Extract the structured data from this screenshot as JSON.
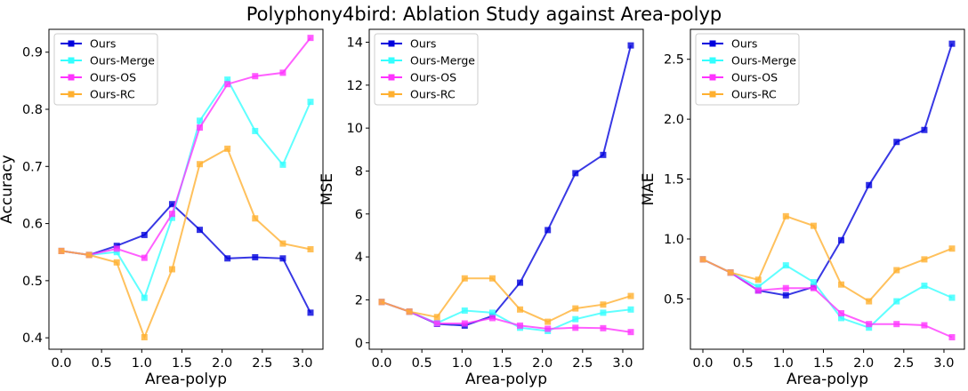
{
  "title": "Polyphony4bird: Ablation Study against Area-polyp",
  "colors": {
    "Ours": "#0000dd",
    "Ours-Merge": "#33ffff",
    "Ours-OS": "#ff33ff",
    "Ours-RC": "#ffb030"
  },
  "chart_data": [
    {
      "type": "line",
      "xlabel": "Area-polyp",
      "ylabel": "Accuracy",
      "x": [
        0.0,
        0.344,
        0.689,
        1.033,
        1.378,
        1.722,
        2.067,
        2.411,
        2.756,
        3.1
      ],
      "xlim": [
        -0.155,
        3.255
      ],
      "ylim": [
        0.38,
        0.94
      ],
      "xticks": [
        "0.0",
        "0.5",
        "1.0",
        "1.5",
        "2.0",
        "2.5",
        "3.0"
      ],
      "xtick_values": [
        0,
        0.5,
        1.0,
        1.5,
        2.0,
        2.5,
        3.0
      ],
      "yticks": [
        "0.4",
        "0.5",
        "0.6",
        "0.7",
        "0.8",
        "0.9"
      ],
      "ytick_values": [
        0.4,
        0.5,
        0.6,
        0.7,
        0.8,
        0.9
      ],
      "legend": "top-left",
      "series": [
        {
          "name": "Ours",
          "values": [
            0.552,
            0.545,
            0.561,
            0.58,
            0.634,
            0.589,
            0.539,
            0.541,
            0.539,
            0.444
          ]
        },
        {
          "name": "Ours-Merge",
          "values": [
            0.552,
            0.545,
            0.55,
            0.47,
            0.61,
            0.78,
            0.852,
            0.762,
            0.703,
            0.813
          ]
        },
        {
          "name": "Ours-OS",
          "values": [
            0.552,
            0.545,
            0.556,
            0.54,
            0.617,
            0.768,
            0.844,
            0.858,
            0.864,
            0.925
          ]
        },
        {
          "name": "Ours-RC",
          "values": [
            0.552,
            0.545,
            0.532,
            0.401,
            0.52,
            0.704,
            0.731,
            0.609,
            0.565,
            0.555
          ]
        }
      ]
    },
    {
      "type": "line",
      "xlabel": "Area-polyp",
      "ylabel": "MSE",
      "x": [
        0.0,
        0.344,
        0.689,
        1.033,
        1.378,
        1.722,
        2.067,
        2.411,
        2.756,
        3.1
      ],
      "xlim": [
        -0.155,
        3.255
      ],
      "ylim": [
        -0.3,
        14.6
      ],
      "xticks": [
        "0.0",
        "0.5",
        "1.0",
        "1.5",
        "2.0",
        "2.5",
        "3.0"
      ],
      "xtick_values": [
        0,
        0.5,
        1.0,
        1.5,
        2.0,
        2.5,
        3.0
      ],
      "yticks": [
        "0",
        "2",
        "4",
        "6",
        "8",
        "10",
        "12",
        "14"
      ],
      "ytick_values": [
        0,
        2,
        4,
        6,
        8,
        10,
        12,
        14
      ],
      "legend": "top-left",
      "series": [
        {
          "name": "Ours",
          "values": [
            1.9,
            1.45,
            0.88,
            0.8,
            1.25,
            2.8,
            5.25,
            7.9,
            8.75,
            13.85
          ]
        },
        {
          "name": "Ours-Merge",
          "values": [
            1.9,
            1.45,
            0.92,
            1.5,
            1.4,
            0.7,
            0.55,
            1.1,
            1.4,
            1.55
          ]
        },
        {
          "name": "Ours-OS",
          "values": [
            1.9,
            1.45,
            0.9,
            0.9,
            1.15,
            0.8,
            0.65,
            0.7,
            0.68,
            0.5
          ]
        },
        {
          "name": "Ours-RC",
          "values": [
            1.9,
            1.45,
            1.2,
            3.0,
            3.0,
            1.55,
            0.98,
            1.6,
            1.78,
            2.18
          ]
        }
      ]
    },
    {
      "type": "line",
      "xlabel": "Area-polyp",
      "ylabel": "MAE",
      "x": [
        0.0,
        0.344,
        0.689,
        1.033,
        1.378,
        1.722,
        2.067,
        2.411,
        2.756,
        3.1
      ],
      "xlim": [
        -0.155,
        3.255
      ],
      "ylim": [
        0.08,
        2.75
      ],
      "xticks": [
        "0.0",
        "0.5",
        "1.0",
        "1.5",
        "2.0",
        "2.5",
        "3.0"
      ],
      "xtick_values": [
        0,
        0.5,
        1.0,
        1.5,
        2.0,
        2.5,
        3.0
      ],
      "yticks": [
        "0.5",
        "1.0",
        "1.5",
        "2.0",
        "2.5"
      ],
      "ytick_values": [
        0.5,
        1.0,
        1.5,
        2.0,
        2.5
      ],
      "legend": "top-left",
      "series": [
        {
          "name": "Ours",
          "values": [
            0.83,
            0.72,
            0.57,
            0.53,
            0.6,
            0.99,
            1.45,
            1.81,
            1.91,
            2.63
          ]
        },
        {
          "name": "Ours-Merge",
          "values": [
            0.83,
            0.72,
            0.6,
            0.78,
            0.64,
            0.34,
            0.26,
            0.48,
            0.61,
            0.51
          ]
        },
        {
          "name": "Ours-OS",
          "values": [
            0.83,
            0.72,
            0.57,
            0.59,
            0.59,
            0.38,
            0.29,
            0.29,
            0.28,
            0.18
          ]
        },
        {
          "name": "Ours-RC",
          "values": [
            0.83,
            0.72,
            0.66,
            1.19,
            1.11,
            0.62,
            0.48,
            0.74,
            0.83,
            0.92
          ]
        }
      ]
    }
  ]
}
